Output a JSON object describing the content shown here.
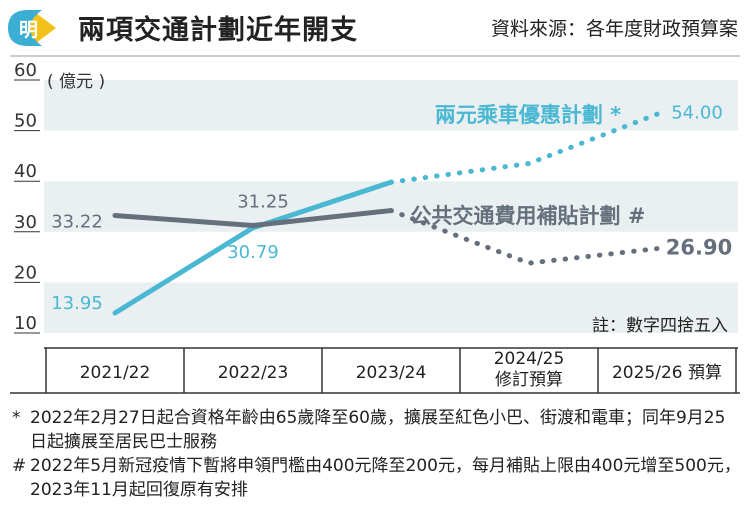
{
  "header": {
    "title": "兩項交通計劃近年開支",
    "source": "資料來源：各年度財政預算案",
    "logo_text": "明"
  },
  "chart_data": {
    "type": "line",
    "unit": "( 億元 )",
    "ylim": [
      10,
      60
    ],
    "yticks": [
      10,
      20,
      30,
      40,
      50,
      60
    ],
    "categories": [
      "2021/22",
      "2022/23",
      "2023/24",
      "2024/25\n修訂預算",
      "2025/26 預算"
    ],
    "series": [
      {
        "name": "兩元乘車優惠計劃 *",
        "color": "#4ab8d2",
        "values": [
          13.95,
          30.79,
          39.8,
          43.5,
          54.0
        ],
        "labels": [
          "13.95",
          "30.79",
          "",
          "",
          "54.00"
        ],
        "solid_until": 2
      },
      {
        "name": "公共交通費用補貼計劃 #",
        "color": "#66707c",
        "values": [
          33.22,
          31.25,
          34.2,
          23.8,
          26.9
        ],
        "labels": [
          "33.22",
          "31.25",
          "",
          "",
          "26.90"
        ],
        "solid_until": 2
      }
    ],
    "note": "註：數字四捨五入"
  },
  "footnotes": [
    {
      "mark": "*",
      "text": "2022年2月27日起合資格年齡由65歲降至60歲，擴展至紅色小巴、街渡和電車；同年9月25日起擴展至居民巴士服務"
    },
    {
      "mark": "#",
      "text": "2022年5月新冠疫情下暫將申領門檻由400元降至200元，每月補貼上限由400元增至500元，2023年11月起回復原有安排"
    }
  ],
  "colors": {
    "band": "#eaf0f1",
    "axis_line": "#333333",
    "brand_yellow": "#f2c21b",
    "brand_blue": "#3aaed3"
  }
}
